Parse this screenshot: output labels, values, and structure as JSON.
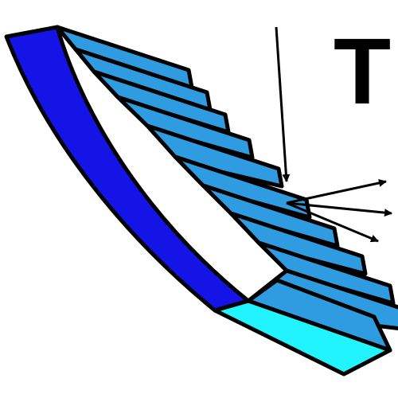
{
  "icon": {
    "name": "blazed-grating-reflection-icon",
    "letter": "T",
    "colors": {
      "outline": "#000000",
      "front_face": "#1414e6",
      "facet": "#2f9be0",
      "end_face": "#22f4ff",
      "background": "#ffffff"
    }
  }
}
